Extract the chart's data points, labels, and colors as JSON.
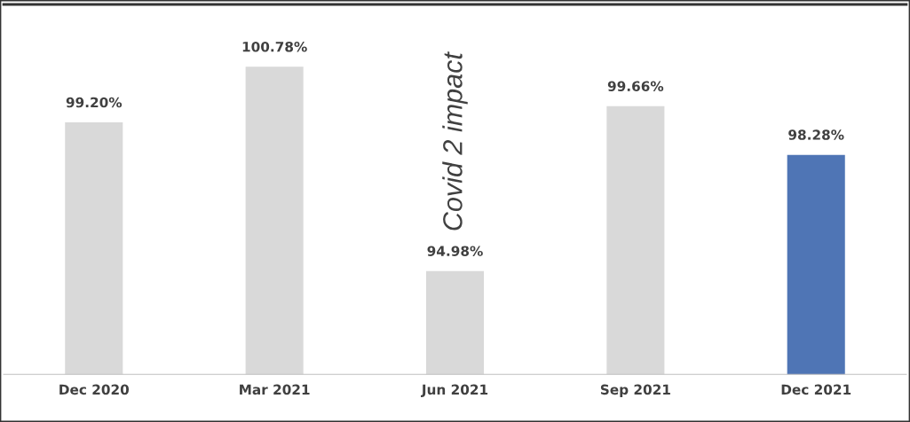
{
  "chart_data": {
    "type": "bar",
    "categories": [
      "Dec 2020",
      "Mar 2021",
      "Jun 2021",
      "Sep 2021",
      "Dec 2021"
    ],
    "values": [
      99.2,
      100.78,
      94.98,
      99.66,
      98.28
    ],
    "colors": [
      "#d9d9d9",
      "#d9d9d9",
      "#d9d9d9",
      "#d9d9d9",
      "#4f75b5"
    ],
    "value_labels": [
      "99.20%",
      "100.78%",
      "94.98%",
      "99.66%",
      "98.28%"
    ],
    "ylim": [
      92.05,
      102.55
    ],
    "tick_labels": "x",
    "grid": false,
    "legend": false,
    "annotations": [
      "Covid 2 impact"
    ]
  }
}
